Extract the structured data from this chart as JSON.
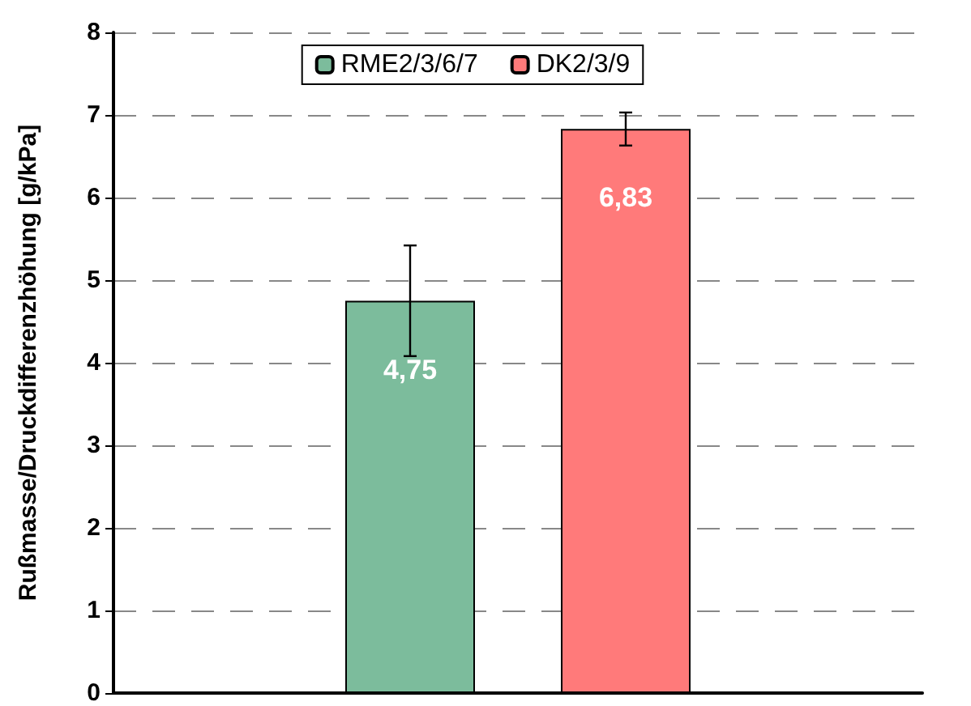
{
  "chart_data": {
    "type": "bar",
    "ylabel": "Rußmasse/Druckdifferenzhöhung [g/kPa]",
    "categories": [
      null
    ],
    "series": [
      {
        "name": "RME2/3/6/7",
        "color": "#7cbc9c",
        "values": [
          4.75
        ],
        "errors": [
          0.67
        ],
        "value_labels": [
          "4,75"
        ]
      },
      {
        "name": "DK2/3/9",
        "color": "#ff7a7a",
        "values": [
          6.83
        ],
        "errors": [
          0.2
        ],
        "value_labels": [
          "6,83"
        ]
      }
    ],
    "ylim": [
      0,
      8
    ],
    "yticks": [
      0,
      1,
      2,
      3,
      4,
      5,
      6,
      7,
      8
    ],
    "grid": "y",
    "legend": "top"
  }
}
